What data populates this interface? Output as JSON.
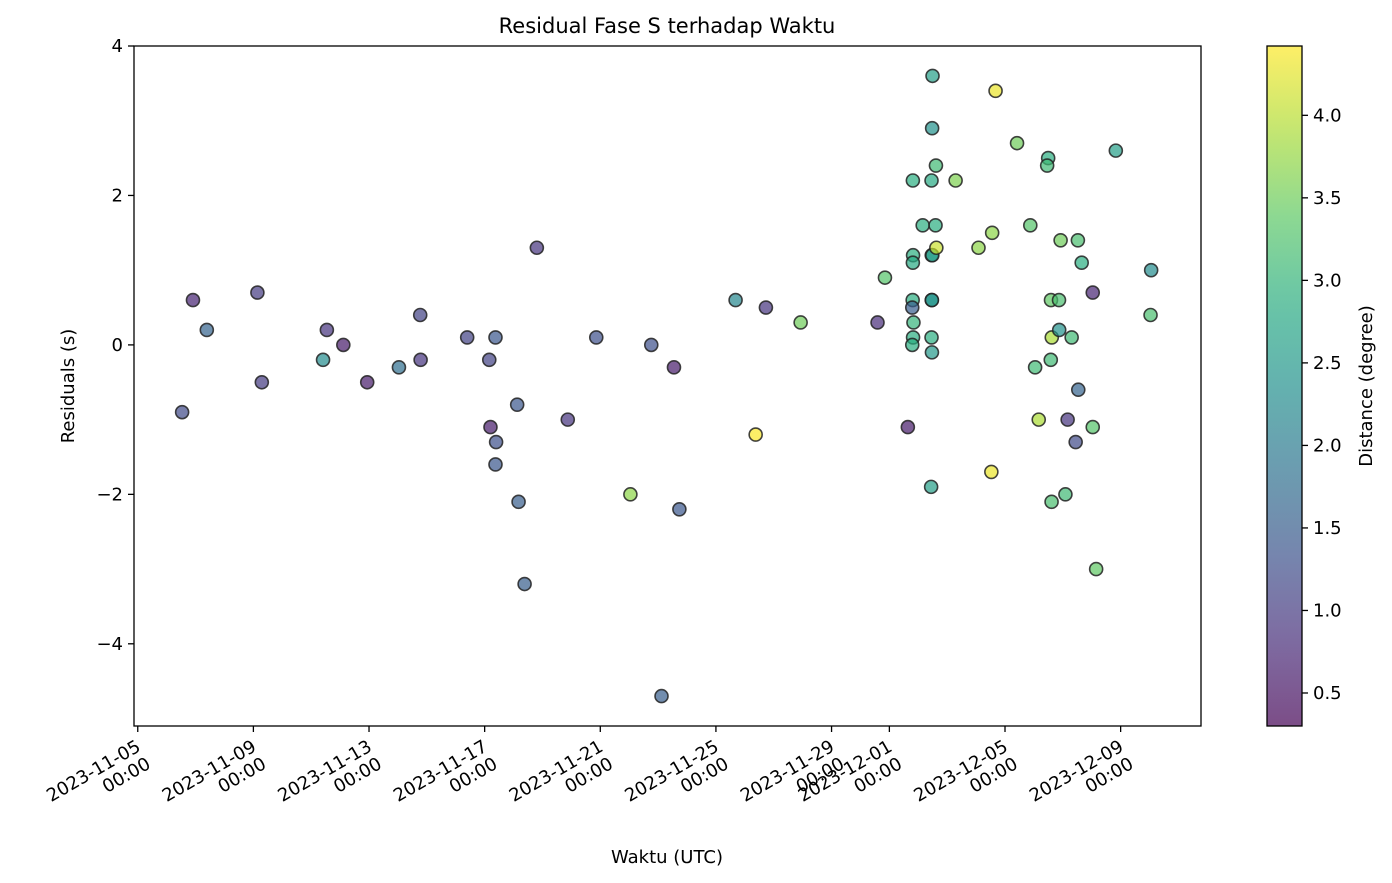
{
  "chart_data": {
    "type": "scatter",
    "title": "Residual Fase S terhadap Waktu",
    "xlabel": "Waktu (UTC)",
    "ylabel": "Residuals (s)",
    "x_type": "datetime",
    "xlim": [
      "2023-11-04T20:53",
      "2023-12-11T18:43"
    ],
    "ylim": [
      -5.1,
      4.0
    ],
    "x_ticks": [
      {
        "date": "2023-11-05T00:00",
        "label": [
          "2023-11-05",
          "00:00"
        ]
      },
      {
        "date": "2023-11-09T00:00",
        "label": [
          "2023-11-09",
          "00:00"
        ]
      },
      {
        "date": "2023-11-13T00:00",
        "label": [
          "2023-11-13",
          "00:00"
        ]
      },
      {
        "date": "2023-11-17T00:00",
        "label": [
          "2023-11-17",
          "00:00"
        ]
      },
      {
        "date": "2023-11-21T00:00",
        "label": [
          "2023-11-21",
          "00:00"
        ]
      },
      {
        "date": "2023-11-25T00:00",
        "label": [
          "2023-11-25",
          "00:00"
        ]
      },
      {
        "date": "2023-11-29T00:00",
        "label": [
          "2023-11-29",
          "00:00"
        ]
      },
      {
        "date": "2023-12-01T00:00",
        "label": [
          "2023-12-01",
          "00:00"
        ]
      },
      {
        "date": "2023-12-05T00:00",
        "label": [
          "2023-12-05",
          "00:00"
        ]
      },
      {
        "date": "2023-12-09T00:00",
        "label": [
          "2023-12-09",
          "00:00"
        ]
      }
    ],
    "y_ticks": [
      {
        "value": 4,
        "label": "4"
      },
      {
        "value": 2,
        "label": "2"
      },
      {
        "value": 0,
        "label": "0"
      },
      {
        "value": -2,
        "label": "−2"
      },
      {
        "value": -4,
        "label": "−4"
      }
    ],
    "colorbar": {
      "label": "Distance (degree)",
      "colormap": "viridis",
      "alpha": 0.7,
      "range": [
        0.3,
        4.42
      ],
      "ticks": [
        {
          "value": 0.5,
          "label": "0.5"
        },
        {
          "value": 1.0,
          "label": "1.0"
        },
        {
          "value": 1.5,
          "label": "1.5"
        },
        {
          "value": 2.0,
          "label": "2.0"
        },
        {
          "value": 2.5,
          "label": "2.5"
        },
        {
          "value": 3.0,
          "label": "3.0"
        },
        {
          "value": 3.5,
          "label": "3.5"
        },
        {
          "value": 4.0,
          "label": "4.0"
        }
      ]
    },
    "grid": false,
    "legend": "none",
    "points": [
      {
        "x": "2023-11-06T12:50",
        "y": -0.9,
        "c": 1.2
      },
      {
        "x": "2023-11-06T21:50",
        "y": 0.6,
        "c": 0.7
      },
      {
        "x": "2023-11-07T09:20",
        "y": 0.2,
        "c": 1.6
      },
      {
        "x": "2023-11-09T03:20",
        "y": 0.7,
        "c": 1.0
      },
      {
        "x": "2023-11-09T07:00",
        "y": -0.5,
        "c": 1.0
      },
      {
        "x": "2023-11-11T09:50",
        "y": -0.2,
        "c": 2.3
      },
      {
        "x": "2023-11-11T13:00",
        "y": 0.2,
        "c": 0.9
      },
      {
        "x": "2023-11-12T02:40",
        "y": 0.0,
        "c": 0.6
      },
      {
        "x": "2023-11-12T22:30",
        "y": -0.5,
        "c": 0.6
      },
      {
        "x": "2023-11-14T00:50",
        "y": -0.3,
        "c": 1.8
      },
      {
        "x": "2023-11-14T18:30",
        "y": 0.4,
        "c": 1.1
      },
      {
        "x": "2023-11-14T18:50",
        "y": -0.2,
        "c": 0.9
      },
      {
        "x": "2023-11-16T09:30",
        "y": 0.1,
        "c": 1.1
      },
      {
        "x": "2023-11-17T03:50",
        "y": -0.2,
        "c": 1.1
      },
      {
        "x": "2023-11-17T04:50",
        "y": -1.1,
        "c": 0.6
      },
      {
        "x": "2023-11-17T09:00",
        "y": 0.1,
        "c": 1.4
      },
      {
        "x": "2023-11-17T09:30",
        "y": -1.3,
        "c": 1.3
      },
      {
        "x": "2023-11-17T09:00",
        "y": -1.6,
        "c": 1.4
      },
      {
        "x": "2023-11-18T03:00",
        "y": -0.8,
        "c": 1.4
      },
      {
        "x": "2023-11-18T04:10",
        "y": -2.1,
        "c": 1.5
      },
      {
        "x": "2023-11-18T19:20",
        "y": 1.3,
        "c": 0.9
      },
      {
        "x": "2023-11-18T09:10",
        "y": -3.2,
        "c": 1.5
      },
      {
        "x": "2023-11-19T21:00",
        "y": -1.0,
        "c": 0.9
      },
      {
        "x": "2023-11-20T20:40",
        "y": 0.1,
        "c": 1.3
      },
      {
        "x": "2023-11-22T01:00",
        "y": -2.0,
        "c": 3.7
      },
      {
        "x": "2023-11-22T18:20",
        "y": 0.0,
        "c": 1.3
      },
      {
        "x": "2023-11-23T02:50",
        "y": -4.7,
        "c": 1.5
      },
      {
        "x": "2023-11-23T13:10",
        "y": -0.3,
        "c": 0.6
      },
      {
        "x": "2023-11-23T17:40",
        "y": -2.2,
        "c": 1.4
      },
      {
        "x": "2023-11-25T16:20",
        "y": 0.6,
        "c": 2.2
      },
      {
        "x": "2023-11-26T09:00",
        "y": -1.2,
        "c": 4.4
      },
      {
        "x": "2023-11-26T17:30",
        "y": 0.5,
        "c": 0.9
      },
      {
        "x": "2023-11-27T22:20",
        "y": 0.3,
        "c": 3.5
      },
      {
        "x": "2023-11-30T14:10",
        "y": 0.3,
        "c": 0.8
      },
      {
        "x": "2023-11-30T20:20",
        "y": 0.9,
        "c": 3.3
      },
      {
        "x": "2023-12-01T15:20",
        "y": -1.1,
        "c": 0.6
      },
      {
        "x": "2023-12-01T19:30",
        "y": 2.2,
        "c": 2.9
      },
      {
        "x": "2023-12-01T19:40",
        "y": 1.2,
        "c": 2.9
      },
      {
        "x": "2023-12-01T19:30",
        "y": 1.1,
        "c": 2.8
      },
      {
        "x": "2023-12-01T19:20",
        "y": 0.6,
        "c": 2.9
      },
      {
        "x": "2023-12-01T19:00",
        "y": 0.5,
        "c": 1.5
      },
      {
        "x": "2023-12-01T20:00",
        "y": 0.3,
        "c": 3.0
      },
      {
        "x": "2023-12-01T19:40",
        "y": 0.1,
        "c": 2.9
      },
      {
        "x": "2023-12-01T19:00",
        "y": 0.0,
        "c": 2.9
      },
      {
        "x": "2023-12-02T03:40",
        "y": 1.6,
        "c": 2.9
      },
      {
        "x": "2023-12-02T11:50",
        "y": 3.6,
        "c": 2.6
      },
      {
        "x": "2023-12-02T11:30",
        "y": 2.9,
        "c": 2.4
      },
      {
        "x": "2023-12-02T11:00",
        "y": 2.2,
        "c": 2.8
      },
      {
        "x": "2023-12-02T11:10",
        "y": 1.2,
        "c": 2.9
      },
      {
        "x": "2023-12-02T11:40",
        "y": 1.2,
        "c": 2.5
      },
      {
        "x": "2023-12-02T11:10",
        "y": 0.6,
        "c": 2.6
      },
      {
        "x": "2023-12-02T11:20",
        "y": 0.6,
        "c": 2.4
      },
      {
        "x": "2023-12-02T11:00",
        "y": 0.1,
        "c": 2.9
      },
      {
        "x": "2023-12-02T11:20",
        "y": -0.1,
        "c": 2.5
      },
      {
        "x": "2023-12-02T10:40",
        "y": -1.9,
        "c": 2.6
      },
      {
        "x": "2023-12-02T14:40",
        "y": 2.4,
        "c": 3.1
      },
      {
        "x": "2023-12-02T14:20",
        "y": 1.6,
        "c": 2.9
      },
      {
        "x": "2023-12-02T15:00",
        "y": 1.3,
        "c": 4.1
      },
      {
        "x": "2023-12-03T07:00",
        "y": 2.2,
        "c": 3.6
      },
      {
        "x": "2023-12-04T02:00",
        "y": 1.3,
        "c": 3.7
      },
      {
        "x": "2023-12-04T13:20",
        "y": 1.5,
        "c": 3.7
      },
      {
        "x": "2023-12-04T12:40",
        "y": -1.7,
        "c": 4.3
      },
      {
        "x": "2023-12-04T16:10",
        "y": 3.4,
        "c": 4.3
      },
      {
        "x": "2023-12-05T10:00",
        "y": 2.7,
        "c": 3.5
      },
      {
        "x": "2023-12-05T21:00",
        "y": 1.6,
        "c": 3.3
      },
      {
        "x": "2023-12-06T01:00",
        "y": -0.3,
        "c": 3.1
      },
      {
        "x": "2023-12-06T04:00",
        "y": -1.0,
        "c": 3.9
      },
      {
        "x": "2023-12-06T11:50",
        "y": 2.5,
        "c": 2.9
      },
      {
        "x": "2023-12-06T11:00",
        "y": 2.4,
        "c": 3.1
      },
      {
        "x": "2023-12-06T14:00",
        "y": -0.2,
        "c": 3.1
      },
      {
        "x": "2023-12-06T14:10",
        "y": 0.6,
        "c": 3.4
      },
      {
        "x": "2023-12-06T14:50",
        "y": 0.1,
        "c": 3.9
      },
      {
        "x": "2023-12-06T14:40",
        "y": -2.1,
        "c": 3.2
      },
      {
        "x": "2023-12-06T20:50",
        "y": 0.6,
        "c": 3.2
      },
      {
        "x": "2023-12-06T21:00",
        "y": 0.2,
        "c": 2.4
      },
      {
        "x": "2023-12-06T22:10",
        "y": 1.4,
        "c": 3.5
      },
      {
        "x": "2023-12-07T02:10",
        "y": -2.0,
        "c": 3.1
      },
      {
        "x": "2023-12-07T04:00",
        "y": -1.0,
        "c": 0.9
      },
      {
        "x": "2023-12-07T07:20",
        "y": 0.1,
        "c": 3.1
      },
      {
        "x": "2023-12-07T10:40",
        "y": -1.3,
        "c": 1.2
      },
      {
        "x": "2023-12-07T12:30",
        "y": 1.4,
        "c": 3.2
      },
      {
        "x": "2023-12-07T12:50",
        "y": -0.6,
        "c": 1.6
      },
      {
        "x": "2023-12-07T15:40",
        "y": 1.1,
        "c": 2.9
      },
      {
        "x": "2023-12-08T00:50",
        "y": 0.7,
        "c": 0.7
      },
      {
        "x": "2023-12-08T00:50",
        "y": -1.1,
        "c": 3.3
      },
      {
        "x": "2023-12-08T03:40",
        "y": -3.0,
        "c": 3.4
      },
      {
        "x": "2023-12-08T20:00",
        "y": 2.6,
        "c": 2.6
      },
      {
        "x": "2023-12-10T01:20",
        "y": 1.0,
        "c": 2.3
      },
      {
        "x": "2023-12-10T00:50",
        "y": 0.4,
        "c": 3.2
      }
    ]
  }
}
